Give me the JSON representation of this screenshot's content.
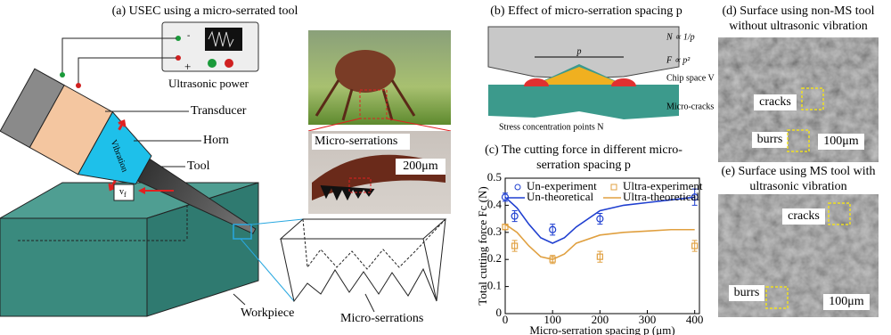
{
  "panels": {
    "a": {
      "title": "(a) USEC using a micro-serrated tool",
      "power_label": "Ultrasonic power",
      "minus": "-",
      "plus": "+",
      "transducer": "Transducer",
      "horn": "Horn",
      "tool": "Tool",
      "vibration": "Vibration",
      "feed": {
        "main": "v",
        "sub": "f"
      },
      "workpiece": "Workpiece",
      "zoom_label": "Micro-serrations",
      "photo_label": "Micro-serrations",
      "scale": "200μm"
    },
    "b": {
      "title": "(b) Effect of micro-serration spacing p",
      "spacing": "p",
      "formula_n": "N ∝ 1/p",
      "formula_f": "F ∝ p²",
      "chip_space": "Chip space V",
      "stress": "Stress concentration points N",
      "cracks": "Micro-cracks"
    },
    "d": {
      "title": "(d) Surface using non-MS tool without ultrasonic vibration",
      "cracks": "cracks",
      "burrs": "burrs",
      "scale": "100μm"
    },
    "e": {
      "title": "(e) Surface using MS tool with ultrasonic vibration",
      "cracks": "cracks",
      "burrs": "burrs",
      "scale": "100μm"
    }
  },
  "chart_data": {
    "type": "line",
    "title": "(c) The cutting force in different micro-serration spacing p",
    "x_label": "Micro-serration spacing p (μm)",
    "y_label": "Total cutting force Fc (N)",
    "xlim": [
      0,
      410
    ],
    "xticks": [
      0,
      100,
      200,
      300,
      400
    ],
    "ylim": [
      0,
      0.5
    ],
    "yticks": [
      0,
      0.1,
      0.2,
      0.3,
      0.4,
      0.5
    ],
    "series": [
      {
        "name": "Un-experiment",
        "color": "#1f3fd0",
        "marker": "circle",
        "x": [
          0,
          20,
          100,
          200,
          400
        ],
        "values": [
          0.43,
          0.36,
          0.31,
          0.35,
          0.43
        ],
        "errors": [
          0.015,
          0.02,
          0.02,
          0.02,
          0.03
        ]
      },
      {
        "name": "Ultra-experiment",
        "color": "#e0a040",
        "marker": "square",
        "x": [
          0,
          20,
          100,
          200,
          400
        ],
        "values": [
          0.32,
          0.25,
          0.2,
          0.21,
          0.25
        ],
        "errors": [
          0.01,
          0.02,
          0.015,
          0.02,
          0.02
        ]
      },
      {
        "name": "Un-theoretical",
        "color": "#1f3fd0",
        "marker": "none",
        "x": [
          0,
          25,
          50,
          75,
          100,
          125,
          150,
          200,
          250,
          300,
          350,
          400
        ],
        "values": [
          0.43,
          0.39,
          0.33,
          0.28,
          0.26,
          0.28,
          0.32,
          0.38,
          0.4,
          0.41,
          0.42,
          0.43
        ]
      },
      {
        "name": "Ultra-theoretical",
        "color": "#e0a040",
        "marker": "none",
        "x": [
          0,
          25,
          50,
          75,
          100,
          125,
          150,
          200,
          250,
          300,
          350,
          400
        ],
        "values": [
          0.33,
          0.3,
          0.25,
          0.21,
          0.2,
          0.22,
          0.26,
          0.29,
          0.3,
          0.305,
          0.31,
          0.31
        ]
      }
    ]
  }
}
